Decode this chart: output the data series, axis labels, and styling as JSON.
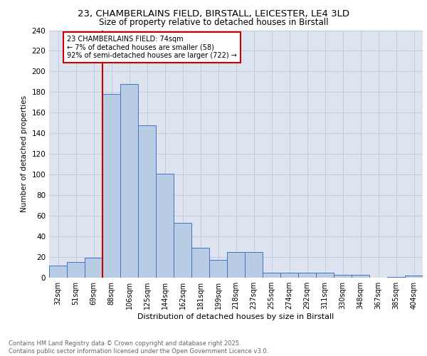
{
  "title1": "23, CHAMBERLAINS FIELD, BIRSTALL, LEICESTER, LE4 3LD",
  "title2": "Size of property relative to detached houses in Birstall",
  "xlabel": "Distribution of detached houses by size in Birstall",
  "ylabel": "Number of detached properties",
  "bar_labels": [
    "32sqm",
    "51sqm",
    "69sqm",
    "88sqm",
    "106sqm",
    "125sqm",
    "144sqm",
    "162sqm",
    "181sqm",
    "199sqm",
    "218sqm",
    "237sqm",
    "255sqm",
    "274sqm",
    "292sqm",
    "311sqm",
    "330sqm",
    "348sqm",
    "367sqm",
    "385sqm",
    "404sqm"
  ],
  "bar_values": [
    12,
    15,
    19,
    178,
    188,
    148,
    101,
    53,
    29,
    17,
    25,
    25,
    5,
    5,
    5,
    5,
    3,
    3,
    0,
    1,
    2
  ],
  "bar_color": "#b8cce4",
  "bar_edge_color": "#4472c4",
  "background_color": "#dde4f0",
  "vline_color": "#cc0000",
  "annotation_text": "23 CHAMBERLAINS FIELD: 74sqm\n← 7% of detached houses are smaller (58)\n92% of semi-detached houses are larger (722) →",
  "annotation_box_color": "#ffffff",
  "annotation_box_edge": "#cc0000",
  "footer_text": "Contains HM Land Registry data © Crown copyright and database right 2025.\nContains public sector information licensed under the Open Government Licence v3.0.",
  "ylim": [
    0,
    240
  ],
  "yticks": [
    0,
    20,
    40,
    60,
    80,
    100,
    120,
    140,
    160,
    180,
    200,
    220,
    240
  ]
}
